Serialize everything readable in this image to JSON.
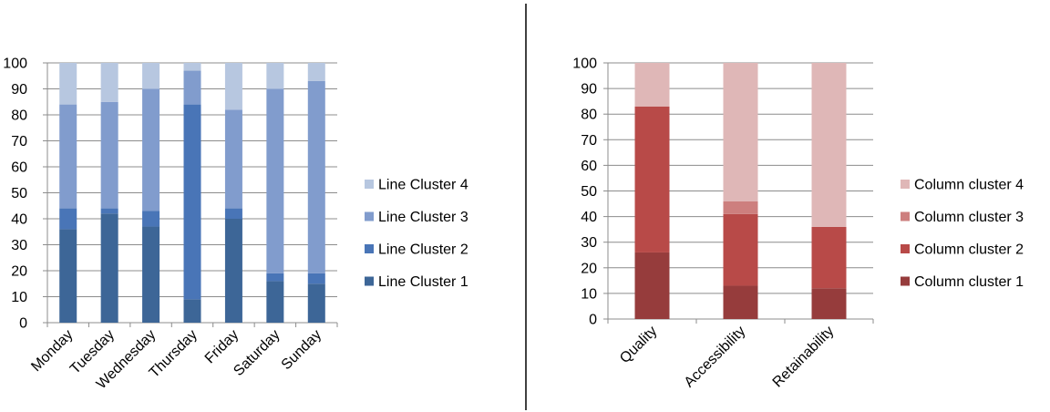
{
  "chart_data": [
    {
      "type": "bar",
      "stacked": true,
      "percent_stacked": true,
      "title": "",
      "xlabel": "",
      "ylabel": "",
      "ylim": [
        0,
        100
      ],
      "yticks": [
        0,
        10,
        20,
        30,
        40,
        50,
        60,
        70,
        80,
        90,
        100
      ],
      "grid": true,
      "legend_position": "right",
      "categories": [
        "Monday",
        "Tuesday",
        "Wednesday",
        "Thursday",
        "Friday",
        "Saturday",
        "Sunday"
      ],
      "series": [
        {
          "name": "Line Cluster 1",
          "color": "#3D6697",
          "values": [
            36,
            42,
            37,
            9,
            40,
            16,
            15
          ]
        },
        {
          "name": "Line Cluster 2",
          "color": "#4975B7",
          "values": [
            8,
            2,
            6,
            75,
            4,
            3,
            4
          ]
        },
        {
          "name": "Line Cluster 3",
          "color": "#819CCD",
          "values": [
            40,
            41,
            47,
            13,
            38,
            71,
            74
          ]
        },
        {
          "name": "Line Cluster 4",
          "color": "#B7C7E0",
          "values": [
            16,
            15,
            10,
            3,
            18,
            10,
            7
          ]
        }
      ]
    },
    {
      "type": "bar",
      "stacked": true,
      "percent_stacked": true,
      "title": "",
      "xlabel": "",
      "ylabel": "",
      "ylim": [
        0,
        100
      ],
      "yticks": [
        0,
        10,
        20,
        30,
        40,
        50,
        60,
        70,
        80,
        90,
        100
      ],
      "grid": true,
      "legend_position": "right",
      "categories": [
        "Quality",
        "Accessibility",
        "Retainability"
      ],
      "series": [
        {
          "name": "Column cluster 1",
          "color": "#963C3C",
          "values": [
            26,
            13,
            12
          ]
        },
        {
          "name": "Column cluster 2",
          "color": "#B84A48",
          "values": [
            57,
            28,
            24
          ]
        },
        {
          "name": "Column cluster 3",
          "color": "#CD7F7E",
          "values": [
            0,
            5,
            0
          ]
        },
        {
          "name": "Column cluster 4",
          "color": "#DFB7B7",
          "values": [
            17,
            54,
            64
          ]
        }
      ]
    }
  ]
}
